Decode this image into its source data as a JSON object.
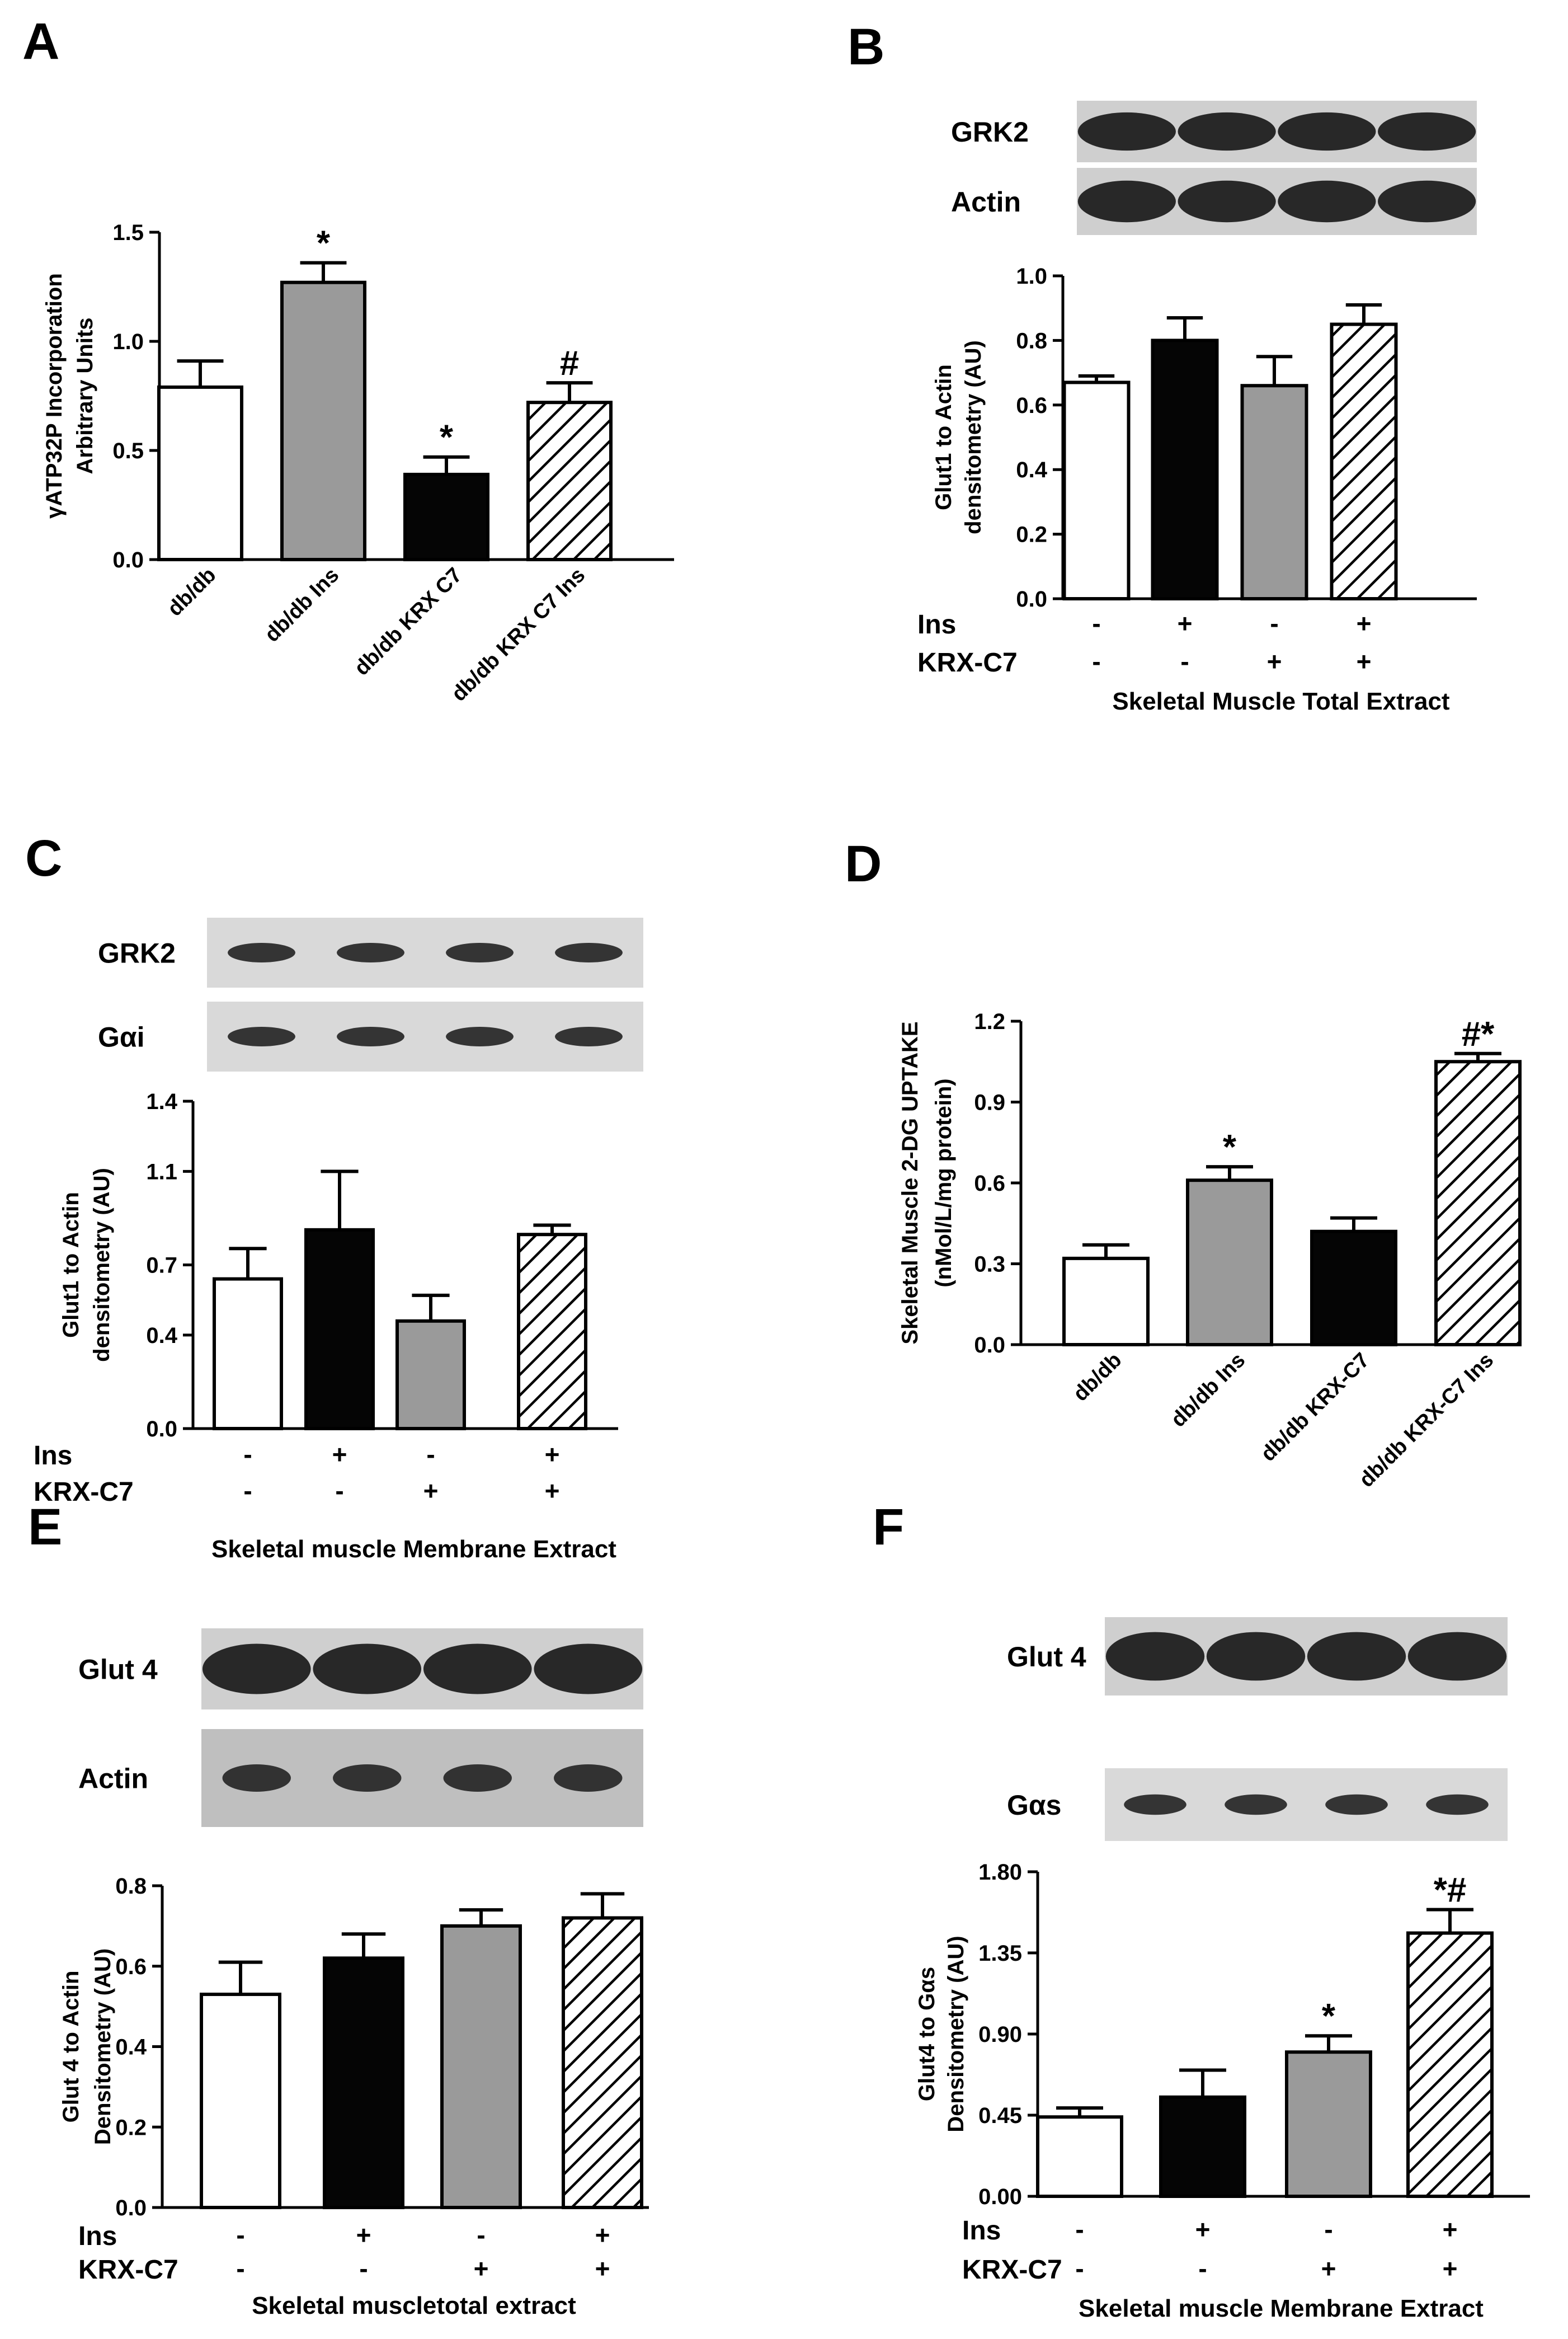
{
  "chart_data": [
    {
      "panel": "A",
      "type": "bar",
      "categories": [
        "db/db",
        "db/db Ins",
        "db/db KRX C7",
        "db/db KRX C7 Ins"
      ],
      "values": [
        0.79,
        1.27,
        0.39,
        0.72
      ],
      "errors": [
        0.12,
        0.09,
        0.08,
        0.09
      ],
      "annotations": [
        "",
        "*",
        "*",
        "#"
      ],
      "fills": [
        "white",
        "gray",
        "black",
        "hatch"
      ],
      "ylabel_lines": [
        "γATP32P Incorporation",
        "Arbitrary Units"
      ],
      "ylim": [
        0,
        1.5
      ],
      "yticks": [
        "0.0",
        "0.5",
        "1.0",
        "1.5"
      ],
      "footer": ""
    },
    {
      "panel": "B",
      "type": "bar",
      "blot_labels": [
        "GRK2",
        "Actin"
      ],
      "categories": [
        "",
        "",
        "",
        ""
      ],
      "ins_row": [
        "-",
        "+",
        "-",
        "+"
      ],
      "krx_row": [
        "-",
        "-",
        "+",
        "+"
      ],
      "row_labels": [
        "Ins",
        "KRX-C7"
      ],
      "values": [
        0.67,
        0.8,
        0.66,
        0.85
      ],
      "errors": [
        0.02,
        0.07,
        0.09,
        0.06
      ],
      "annotations": [
        "",
        "",
        "",
        ""
      ],
      "fills": [
        "white",
        "black",
        "gray",
        "hatch"
      ],
      "ylabel_lines": [
        "Glut1 to Actin",
        "densitometry (AU)"
      ],
      "ylim": [
        0,
        1.0
      ],
      "yticks": [
        "0.0",
        "0.2",
        "0.4",
        "0.6",
        "0.8",
        "1.0"
      ],
      "footer": "Skeletal Muscle Total Extract"
    },
    {
      "panel": "C",
      "type": "bar",
      "blot_labels": [
        "GRK2",
        "Gαi"
      ],
      "categories": [
        "",
        "",
        "",
        ""
      ],
      "ins_row": [
        "-",
        "+",
        "-",
        "+"
      ],
      "krx_row": [
        "-",
        "-",
        "+",
        "+"
      ],
      "row_labels": [
        "Ins",
        "KRX-C7"
      ],
      "values": [
        0.64,
        0.85,
        0.46,
        0.83
      ],
      "errors": [
        0.13,
        0.25,
        0.11,
        0.04
      ],
      "annotations": [
        "",
        "",
        "",
        ""
      ],
      "fills": [
        "white",
        "black",
        "gray",
        "hatch"
      ],
      "ylabel_lines": [
        "Glut1 to Actin",
        "densitometry (AU)"
      ],
      "ylim": [
        0,
        1.4
      ],
      "yticks": [
        "0.0",
        "0.4",
        "0.7",
        "1.1",
        "1.4"
      ],
      "footer": "Skeletal muscle Membrane Extract"
    },
    {
      "panel": "D",
      "type": "bar",
      "categories": [
        "db/db",
        "db/db Ins",
        "db/db KRX-C7",
        "db/db KRX-C7 Ins"
      ],
      "values": [
        0.32,
        0.61,
        0.42,
        1.05
      ],
      "errors": [
        0.05,
        0.05,
        0.05,
        0.03
      ],
      "annotations": [
        "",
        "*",
        "",
        "#*"
      ],
      "fills": [
        "white",
        "gray",
        "black",
        "hatch"
      ],
      "ylabel_lines": [
        "Skeletal Muscle 2-DG UPTAKE",
        "(nMol/L/mg protein)"
      ],
      "ylim": [
        0,
        1.2
      ],
      "yticks": [
        "0.0",
        "0.3",
        "0.6",
        "0.9",
        "1.2"
      ],
      "footer": ""
    },
    {
      "panel": "E",
      "type": "bar",
      "blot_labels": [
        "Glut 4",
        "Actin"
      ],
      "categories": [
        "",
        "",
        "",
        ""
      ],
      "ins_row": [
        "-",
        "+",
        "-",
        "+"
      ],
      "krx_row": [
        "-",
        "-",
        "+",
        "+"
      ],
      "row_labels": [
        "Ins",
        "KRX-C7"
      ],
      "values": [
        0.53,
        0.62,
        0.7,
        0.72
      ],
      "errors": [
        0.08,
        0.06,
        0.04,
        0.06
      ],
      "annotations": [
        "",
        "",
        "",
        ""
      ],
      "fills": [
        "white",
        "black",
        "gray",
        "hatch"
      ],
      "ylabel_lines": [
        "Glut 4 to Actin",
        "Densitometry (AU)"
      ],
      "ylim": [
        0,
        0.8
      ],
      "yticks": [
        "0.0",
        "0.2",
        "0.4",
        "0.6",
        "0.8"
      ],
      "footer": "Skeletal muscletotal extract"
    },
    {
      "panel": "F",
      "type": "bar",
      "blot_labels": [
        "Glut 4",
        "Gαs"
      ],
      "categories": [
        "",
        "",
        "",
        ""
      ],
      "ins_row": [
        "-",
        "+",
        "-",
        "+"
      ],
      "krx_row": [
        "-",
        "-",
        "+",
        "+"
      ],
      "row_labels": [
        "Ins",
        "KRX-C7"
      ],
      "values": [
        0.44,
        0.55,
        0.8,
        1.46
      ],
      "errors": [
        0.05,
        0.15,
        0.09,
        0.13
      ],
      "annotations": [
        "",
        "",
        "*",
        "*#"
      ],
      "fills": [
        "white",
        "black",
        "gray",
        "hatch"
      ],
      "ylabel_lines": [
        "Glut4 to Gαs",
        "Densitometry (AU)"
      ],
      "ylim": [
        0,
        1.8
      ],
      "yticks": [
        "0.00",
        "0.45",
        "0.90",
        "1.35",
        "1.80"
      ],
      "footer": "Skeletal muscle Membrane Extract"
    }
  ]
}
